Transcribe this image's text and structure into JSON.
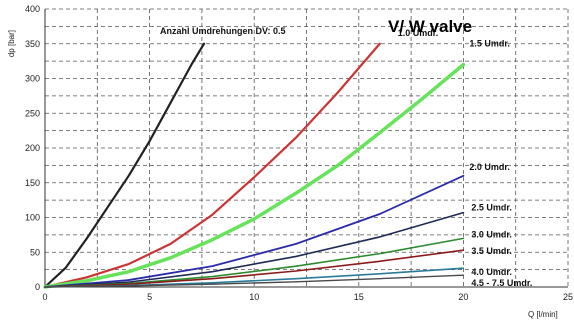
{
  "chart_data": {
    "type": "line",
    "title": "V/ W valve",
    "xlabel": "Q [l/min]",
    "ylabel": "dp [bar]",
    "xlim": [
      0,
      25
    ],
    "ylim": [
      0,
      400
    ],
    "xticks": [
      0,
      5,
      10,
      15,
      20,
      25
    ],
    "yticks": [
      0,
      50,
      100,
      150,
      200,
      250,
      300,
      350,
      400
    ],
    "grid": true,
    "series": [
      {
        "name": "Anzahl Umdrehungen DV: 0.5",
        "color": "#222222",
        "width": 2.2,
        "points": [
          [
            0,
            0
          ],
          [
            1,
            28
          ],
          [
            2,
            70
          ],
          [
            3,
            115
          ],
          [
            4,
            160
          ],
          [
            5,
            210
          ],
          [
            6,
            265
          ],
          [
            7,
            320
          ],
          [
            7.6,
            350
          ]
        ]
      },
      {
        "name": "1.0 Umdr.",
        "color": "#cc3333",
        "width": 2.2,
        "points": [
          [
            0,
            0
          ],
          [
            2,
            14
          ],
          [
            4,
            33
          ],
          [
            6,
            62
          ],
          [
            8,
            104
          ],
          [
            10,
            158
          ],
          [
            12,
            215
          ],
          [
            14,
            280
          ],
          [
            16,
            350
          ]
        ]
      },
      {
        "name": "1.5 Umdr.",
        "color": "#66e35a",
        "width": 3.5,
        "points": [
          [
            0,
            0
          ],
          [
            2,
            9
          ],
          [
            4,
            22
          ],
          [
            6,
            42
          ],
          [
            8,
            68
          ],
          [
            10,
            98
          ],
          [
            12,
            135
          ],
          [
            14,
            175
          ],
          [
            16,
            222
          ],
          [
            18,
            270
          ],
          [
            20,
            320
          ]
        ]
      },
      {
        "name": "2.0 Umdr.",
        "color": "#2a2aaa",
        "width": 1.8,
        "points": [
          [
            0,
            0
          ],
          [
            4,
            10
          ],
          [
            8,
            30
          ],
          [
            12,
            62
          ],
          [
            16,
            105
          ],
          [
            20,
            160
          ]
        ]
      },
      {
        "name": "2.5 Umdr.",
        "color": "#1e2a55",
        "width": 1.6,
        "points": [
          [
            0,
            0
          ],
          [
            4,
            7
          ],
          [
            8,
            22
          ],
          [
            12,
            44
          ],
          [
            16,
            72
          ],
          [
            20,
            107
          ]
        ]
      },
      {
        "name": "3.0 Umdr.",
        "color": "#2e8b2e",
        "width": 1.6,
        "points": [
          [
            0,
            0
          ],
          [
            4,
            5
          ],
          [
            8,
            15
          ],
          [
            12,
            30
          ],
          [
            16,
            48
          ],
          [
            20,
            70
          ]
        ]
      },
      {
        "name": "3.5 Umdr.",
        "color": "#8b1a1a",
        "width": 1.6,
        "points": [
          [
            0,
            0
          ],
          [
            4,
            4
          ],
          [
            8,
            12
          ],
          [
            12,
            23
          ],
          [
            16,
            37
          ],
          [
            20,
            53
          ]
        ]
      },
      {
        "name": "4.0 Umdr.",
        "color": "#2a7a9a",
        "width": 1.6,
        "points": [
          [
            0,
            0
          ],
          [
            4,
            2
          ],
          [
            8,
            6
          ],
          [
            12,
            12
          ],
          [
            16,
            19
          ],
          [
            20,
            27
          ]
        ]
      },
      {
        "name": "4.5 - 7.5 Umdr.",
        "color": "#4a4a4a",
        "width": 1.4,
        "points": [
          [
            0,
            0
          ],
          [
            4,
            1.5
          ],
          [
            8,
            4
          ],
          [
            12,
            7.5
          ],
          [
            16,
            12
          ],
          [
            20,
            17
          ]
        ]
      }
    ]
  }
}
